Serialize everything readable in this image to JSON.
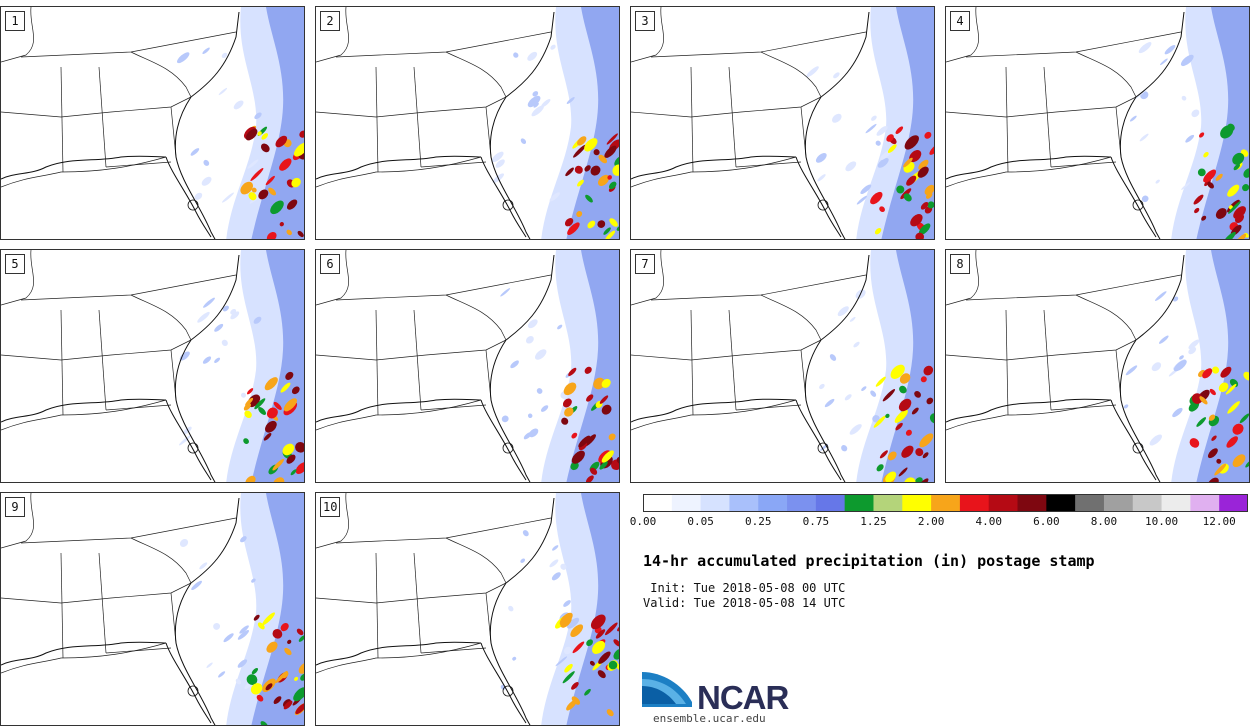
{
  "panels": [
    {
      "label": "1"
    },
    {
      "label": "2"
    },
    {
      "label": "3"
    },
    {
      "label": "4"
    },
    {
      "label": "5"
    },
    {
      "label": "6"
    },
    {
      "label": "7"
    },
    {
      "label": "8"
    },
    {
      "label": "9"
    },
    {
      "label": "10"
    }
  ],
  "colorbar": {
    "colors": [
      "#ffffff",
      "#eef3ff",
      "#d6e2ff",
      "#a9c0fb",
      "#8aa7f6",
      "#7b91ef",
      "#6677e8",
      "#0d9a2e",
      "#b4d47a",
      "#ffff00",
      "#f7a51a",
      "#e8141b",
      "#b50a14",
      "#7e0710",
      "#000000",
      "#707070",
      "#a0a0a0",
      "#c8c8c8",
      "#ececec",
      "#e0b0f0",
      "#9a24d8"
    ],
    "tick_labels": [
      "0.00",
      "0.05",
      "0.25",
      "0.75",
      "1.25",
      "2.00",
      "4.00",
      "6.00",
      "8.00",
      "10.00",
      "12.00"
    ]
  },
  "title": "14-hr accumulated precipitation (in) postage stamp",
  "init_line": " Init: Tue 2018-05-08 00 UTC",
  "valid_line": "Valid: Tue 2018-05-08 14 UTC",
  "logo_text": "NCAR",
  "website": "ensemble.ucar.edu"
}
